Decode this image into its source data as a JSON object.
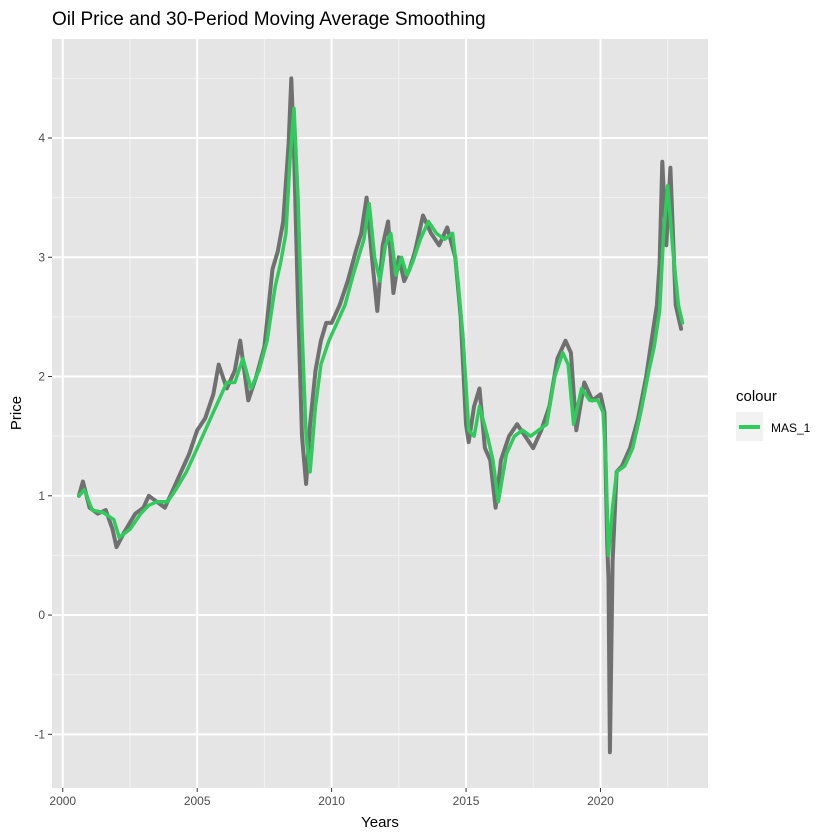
{
  "chart_data": {
    "type": "line",
    "title": "Oil Price and 30-Period Moving Average Smoothing",
    "xlabel": "Years",
    "ylabel": "Price",
    "xlim": [
      1999.6,
      2024.0
    ],
    "ylim": [
      -1.45,
      4.83
    ],
    "x_ticks": [
      2000,
      2005,
      2010,
      2015,
      2020
    ],
    "y_ticks": [
      -1,
      0,
      1,
      2,
      3,
      4
    ],
    "grid": true,
    "background": "#e5e5e5",
    "legend": {
      "title": "colour",
      "position": "right",
      "entries": [
        "MAS_1"
      ]
    },
    "series": [
      {
        "color": "#707070",
        "role": "raw price",
        "x": [
          2000.6,
          2000.75,
          2001.0,
          2001.3,
          2001.6,
          2001.85,
          2002.0,
          2002.3,
          2002.7,
          2003.0,
          2003.2,
          2003.5,
          2003.8,
          2004.1,
          2004.4,
          2004.7,
          2005.0,
          2005.3,
          2005.6,
          2005.8,
          2006.1,
          2006.4,
          2006.6,
          2006.9,
          2007.2,
          2007.5,
          2007.8,
          2008.0,
          2008.2,
          2008.4,
          2008.5,
          2008.6,
          2008.75,
          2008.9,
          2009.05,
          2009.2,
          2009.4,
          2009.6,
          2009.8,
          2010.0,
          2010.3,
          2010.6,
          2010.9,
          2011.1,
          2011.3,
          2011.5,
          2011.7,
          2011.9,
          2012.1,
          2012.3,
          2012.5,
          2012.7,
          2012.9,
          2013.1,
          2013.4,
          2013.7,
          2014.0,
          2014.3,
          2014.6,
          2014.8,
          2015.0,
          2015.1,
          2015.3,
          2015.5,
          2015.7,
          2015.9,
          2016.1,
          2016.3,
          2016.6,
          2016.9,
          2017.2,
          2017.5,
          2017.8,
          2018.1,
          2018.4,
          2018.7,
          2018.9,
          2019.1,
          2019.4,
          2019.7,
          2020.0,
          2020.15,
          2020.25,
          2020.3,
          2020.35,
          2020.45,
          2020.6,
          2020.8,
          2021.1,
          2021.4,
          2021.7,
          2021.9,
          2022.1,
          2022.2,
          2022.3,
          2022.45,
          2022.6,
          2022.8,
          2023.0
        ],
        "y": [
          1.0,
          1.12,
          0.9,
          0.85,
          0.88,
          0.72,
          0.57,
          0.7,
          0.85,
          0.9,
          1.0,
          0.95,
          0.9,
          1.05,
          1.2,
          1.35,
          1.55,
          1.65,
          1.85,
          2.1,
          1.9,
          2.05,
          2.3,
          1.8,
          2.0,
          2.25,
          2.9,
          3.05,
          3.3,
          3.95,
          4.5,
          3.9,
          2.6,
          1.5,
          1.1,
          1.6,
          2.05,
          2.3,
          2.45,
          2.45,
          2.6,
          2.8,
          3.05,
          3.2,
          3.5,
          3.0,
          2.55,
          3.1,
          3.3,
          2.7,
          3.0,
          2.8,
          2.9,
          3.05,
          3.35,
          3.2,
          3.1,
          3.25,
          3.0,
          2.5,
          1.6,
          1.45,
          1.75,
          1.9,
          1.4,
          1.3,
          0.9,
          1.3,
          1.5,
          1.6,
          1.5,
          1.4,
          1.55,
          1.75,
          2.15,
          2.3,
          2.2,
          1.55,
          1.95,
          1.8,
          1.85,
          1.7,
          0.6,
          0.3,
          -1.15,
          0.45,
          1.2,
          1.25,
          1.4,
          1.65,
          2.0,
          2.3,
          2.6,
          2.95,
          3.8,
          3.1,
          3.75,
          2.6,
          2.4
        ]
      },
      {
        "name": "MAS_1",
        "color": "#2ecc5b",
        "x": [
          2000.6,
          2000.8,
          2001.1,
          2001.5,
          2001.9,
          2002.1,
          2002.5,
          2002.9,
          2003.2,
          2003.5,
          2003.9,
          2004.2,
          2004.6,
          2004.9,
          2005.2,
          2005.5,
          2005.8,
          2006.1,
          2006.4,
          2006.7,
          2007.0,
          2007.3,
          2007.6,
          2007.9,
          2008.1,
          2008.3,
          2008.45,
          2008.6,
          2008.75,
          2008.9,
          2009.05,
          2009.2,
          2009.4,
          2009.6,
          2009.9,
          2010.2,
          2010.5,
          2010.8,
          2011.0,
          2011.2,
          2011.4,
          2011.6,
          2011.8,
          2012.0,
          2012.2,
          2012.4,
          2012.6,
          2012.8,
          2013.0,
          2013.3,
          2013.6,
          2013.9,
          2014.2,
          2014.5,
          2014.7,
          2014.9,
          2015.1,
          2015.3,
          2015.5,
          2015.8,
          2016.0,
          2016.2,
          2016.5,
          2016.8,
          2017.1,
          2017.4,
          2017.7,
          2018.0,
          2018.3,
          2018.6,
          2018.8,
          2019.0,
          2019.3,
          2019.6,
          2019.9,
          2020.1,
          2020.2,
          2020.3,
          2020.45,
          2020.6,
          2020.9,
          2021.2,
          2021.5,
          2021.8,
          2022.0,
          2022.2,
          2022.35,
          2022.5,
          2022.7,
          2022.9,
          2023.05
        ],
        "y": [
          1.0,
          1.05,
          0.88,
          0.86,
          0.8,
          0.65,
          0.72,
          0.85,
          0.92,
          0.95,
          0.95,
          1.05,
          1.2,
          1.35,
          1.5,
          1.65,
          1.8,
          1.95,
          1.95,
          2.15,
          1.9,
          2.05,
          2.3,
          2.75,
          2.95,
          3.2,
          3.8,
          4.25,
          3.5,
          2.4,
          1.5,
          1.2,
          1.75,
          2.1,
          2.3,
          2.45,
          2.6,
          2.85,
          3.0,
          3.15,
          3.45,
          3.0,
          2.8,
          3.1,
          3.2,
          2.85,
          3.0,
          2.85,
          2.95,
          3.15,
          3.3,
          3.2,
          3.15,
          3.2,
          2.8,
          2.3,
          1.55,
          1.5,
          1.75,
          1.5,
          1.3,
          0.95,
          1.35,
          1.5,
          1.55,
          1.5,
          1.55,
          1.6,
          2.0,
          2.2,
          2.1,
          1.6,
          1.9,
          1.8,
          1.8,
          1.7,
          1.3,
          0.5,
          0.9,
          1.2,
          1.25,
          1.4,
          1.7,
          2.05,
          2.25,
          2.55,
          3.2,
          3.6,
          3.05,
          2.6,
          2.45
        ]
      }
    ]
  }
}
